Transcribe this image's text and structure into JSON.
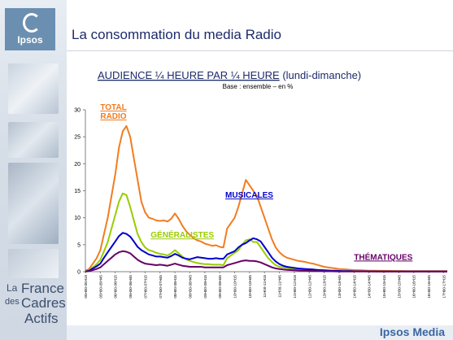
{
  "header": {
    "title": "La consommation du media Radio"
  },
  "logo": {
    "label": "Ipsos",
    "color": "#6b8fb1"
  },
  "badge": {
    "line1": "La",
    "line2": "France",
    "line3": "des",
    "line4": "Cadres",
    "line5": "Actifs"
  },
  "footer": {
    "brand": "Ipsos Media"
  },
  "chart_data": {
    "type": "line",
    "title": "AUDIENCE ¼ HEURE PAR ¼ HEURE",
    "title_suffix": "(lundi-dimanche)",
    "subtitle": "Base : ensemble – en %",
    "xlabel": "",
    "ylabel": "",
    "ylim": [
      0,
      30
    ],
    "yticks": [
      0,
      5,
      10,
      15,
      20,
      25,
      30
    ],
    "grid": false,
    "x": [
      0,
      2,
      4,
      6,
      8,
      10,
      12,
      14,
      16,
      18,
      20,
      22,
      24,
      26,
      28,
      30,
      32,
      34,
      36,
      38,
      40,
      42,
      44,
      46,
      48,
      50,
      52,
      54,
      56,
      58,
      60,
      62,
      64,
      66,
      68,
      70,
      72,
      74,
      76,
      78,
      80,
      82,
      84,
      86,
      88,
      90,
      92,
      94,
      96,
      98,
      100,
      102,
      104,
      106,
      108,
      110,
      112,
      114,
      116,
      118,
      120,
      122,
      124,
      126,
      128,
      130,
      132,
      134,
      136,
      138,
      140,
      142,
      144,
      146,
      148,
      150,
      152,
      154,
      156,
      158,
      160,
      162,
      164,
      166,
      168,
      170,
      172,
      174,
      176,
      178,
      180,
      182,
      184,
      186,
      188,
      190,
      192,
      194
    ],
    "xtick_labels": [
      "05H00-05H15",
      "05H30-05H45",
      "06H00-06H15",
      "06H30-06H45",
      "07H00-07H15",
      "07H30-07H45",
      "08H00-08H15",
      "08H30-08H45",
      "09H00-09H15",
      "09H30-09H45",
      "10H00-10H15",
      "10H30-10H45",
      "11H00-11H15",
      "11H30-11H45",
      "12H00-12H15",
      "12H30-12H45",
      "13H00-13H15",
      "13H30-13H45",
      "14H00-14H15",
      "14H30-14H45",
      "15H00-15H15",
      "15H30-15H45",
      "16H00-16H15",
      "16H30-16H45",
      "17H00-17H15",
      "17H30-17H45",
      "18H00-18H15",
      "18H30-18H45",
      "19H00-19H15",
      "19H30-19H45",
      "20H00-20H15",
      "20H30-20H45",
      "21H00-21H15",
      "21H30-21H45",
      "22H00-22H15",
      "22H30-22H45",
      "23H00-23H15",
      "23H30-23H45",
      "00H00-00H15",
      "00H30-00H45",
      "01H00-01H15",
      "01H30-01H45",
      "02H00-02H15",
      "02H30-02H45",
      "03H00-03H15",
      "03H30-03H45",
      "04H00-04H15",
      "04H30-04H45",
      "05H00-05H15"
    ],
    "series": [
      {
        "name": "TOTAL RADIO",
        "label_lines": [
          "TOTAL",
          "RADIO"
        ],
        "color": "#f07d22",
        "label_pos": [
          8,
          30
        ],
        "values": [
          0.2,
          0.5,
          1.5,
          2.5,
          4.0,
          7.0,
          10.0,
          14.0,
          18.0,
          23.0,
          26.0,
          27.0,
          25.0,
          21.0,
          17.0,
          13.0,
          11.0,
          10.0,
          9.8,
          9.5,
          9.4,
          9.5,
          9.3,
          9.8,
          10.8,
          9.8,
          8.5,
          7.5,
          6.8,
          6.2,
          5.8,
          5.6,
          5.2,
          5.0,
          4.8,
          4.9,
          4.6,
          4.5,
          8.0,
          9.0,
          10.0,
          12.0,
          14.5,
          17.0,
          16.0,
          15.0,
          14.0,
          12.0,
          10.0,
          8.0,
          6.0,
          4.5,
          3.6,
          3.0,
          2.6,
          2.4,
          2.2,
          2.0,
          1.9,
          1.8,
          1.6,
          1.5,
          1.3,
          1.1,
          0.9,
          0.8,
          0.7,
          0.6,
          0.5,
          0.45,
          0.4,
          0.35,
          0.3,
          0.28,
          0.25,
          0.22,
          0.2,
          0.2,
          0.18,
          0.17,
          0.16,
          0.15,
          0.15,
          0.14,
          0.13,
          0.13,
          0.12,
          0.12,
          0.12,
          0.11,
          0.11,
          0.1,
          0.1,
          0.1,
          0.1,
          0.1,
          0.1,
          0.1
        ]
      },
      {
        "name": "GÉNÉRALISTES",
        "label_lines": [
          "GÉNÉRALISTES"
        ],
        "color": "#99cc00",
        "label_pos": [
          35,
          6.3
        ],
        "values": [
          0.1,
          0.3,
          0.8,
          1.4,
          2.2,
          3.8,
          5.5,
          8.0,
          10.5,
          13.0,
          14.5,
          14.2,
          12.0,
          9.5,
          7.0,
          5.5,
          4.5,
          4.0,
          3.8,
          3.5,
          3.3,
          3.2,
          3.0,
          3.4,
          4.0,
          3.4,
          2.8,
          2.3,
          2.0,
          1.8,
          1.6,
          1.5,
          1.4,
          1.4,
          1.3,
          1.3,
          1.3,
          1.2,
          2.5,
          3.0,
          3.5,
          4.0,
          5.0,
          5.8,
          6.0,
          5.5,
          5.5,
          4.5,
          3.5,
          2.5,
          1.8,
          1.2,
          0.9,
          0.8,
          0.7,
          0.6,
          0.5,
          0.45,
          0.4,
          0.35,
          0.3,
          0.28,
          0.25,
          0.22,
          0.2,
          0.18,
          0.16,
          0.14,
          0.12,
          0.1,
          0.1,
          0.1,
          0.08,
          0.08,
          0.07,
          0.07,
          0.06,
          0.06,
          0.05,
          0.05,
          0.05,
          0.05,
          0.05,
          0.05,
          0.05,
          0.05,
          0.05,
          0.05,
          0.05,
          0.05,
          0.05,
          0.05,
          0.05,
          0.05,
          0.05,
          0.05,
          0.05,
          0.05
        ]
      },
      {
        "name": "MUSICALES",
        "label_lines": [
          "MUSICALES"
        ],
        "color": "#0000cc",
        "label_pos": [
          75,
          13.7
        ],
        "values": [
          0.05,
          0.2,
          0.6,
          1.0,
          1.5,
          2.6,
          3.6,
          4.6,
          5.6,
          6.6,
          7.2,
          7.0,
          6.5,
          5.6,
          4.6,
          4.0,
          3.6,
          3.2,
          3.0,
          2.8,
          2.8,
          2.7,
          2.6,
          2.9,
          3.3,
          3.0,
          2.6,
          2.4,
          2.3,
          2.5,
          2.7,
          2.6,
          2.5,
          2.4,
          2.4,
          2.5,
          2.4,
          2.4,
          3.2,
          3.5,
          3.8,
          4.5,
          5.0,
          5.3,
          5.8,
          6.2,
          6.0,
          5.6,
          4.6,
          3.6,
          2.6,
          1.9,
          1.4,
          1.1,
          0.9,
          0.8,
          0.7,
          0.6,
          0.55,
          0.5,
          0.45,
          0.4,
          0.35,
          0.3,
          0.25,
          0.22,
          0.2,
          0.18,
          0.15,
          0.12,
          0.1,
          0.1,
          0.08,
          0.08,
          0.07,
          0.07,
          0.06,
          0.06,
          0.05,
          0.05,
          0.05,
          0.05,
          0.05,
          0.05,
          0.05,
          0.05,
          0.05,
          0.05,
          0.05,
          0.05,
          0.05,
          0.05,
          0.05,
          0.05,
          0.05,
          0.05,
          0.05,
          0.05
        ]
      },
      {
        "name": "THÉMATIQUES",
        "label_lines": [
          "THÉMATIQUES"
        ],
        "color": "#660066",
        "label_pos": [
          144,
          2.2
        ],
        "values": [
          0.02,
          0.1,
          0.3,
          0.5,
          0.8,
          1.4,
          2.0,
          2.6,
          3.2,
          3.6,
          3.8,
          3.7,
          3.4,
          2.8,
          2.2,
          1.8,
          1.5,
          1.4,
          1.3,
          1.2,
          1.3,
          1.2,
          1.1,
          1.3,
          1.5,
          1.3,
          1.1,
          1.0,
          0.9,
          0.9,
          0.9,
          0.9,
          0.8,
          0.8,
          0.8,
          0.8,
          0.8,
          0.8,
          1.2,
          1.4,
          1.6,
          1.8,
          2.0,
          2.1,
          2.0,
          2.0,
          1.9,
          1.7,
          1.4,
          1.1,
          0.8,
          0.6,
          0.5,
          0.4,
          0.35,
          0.3,
          0.25,
          0.22,
          0.2,
          0.18,
          0.15,
          0.12,
          0.1,
          0.1,
          0.08,
          0.08,
          0.07,
          0.06,
          0.05,
          0.05,
          0.05,
          0.04,
          0.04,
          0.04,
          0.03,
          0.03,
          0.03,
          0.03,
          0.03,
          0.03,
          0.03,
          0.03,
          0.03,
          0.03,
          0.03,
          0.03,
          0.03,
          0.03,
          0.03,
          0.03,
          0.03,
          0.03,
          0.03,
          0.03,
          0.03,
          0.03,
          0.03,
          0.03
        ]
      }
    ]
  }
}
